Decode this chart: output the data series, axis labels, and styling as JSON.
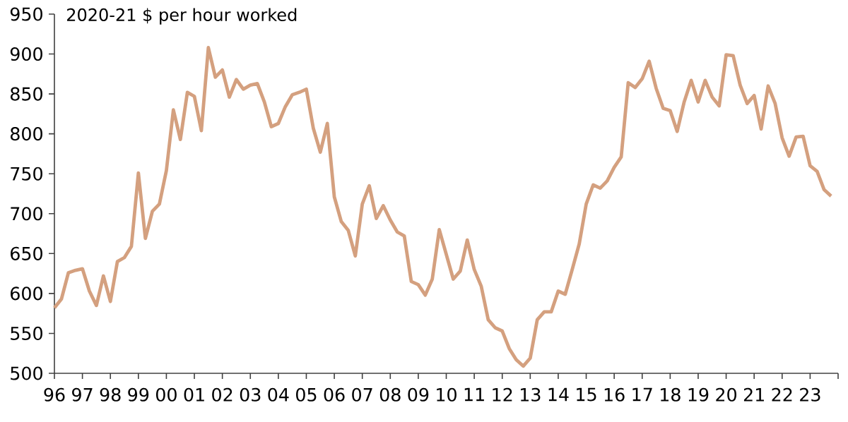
{
  "chart_data": {
    "type": "line",
    "title": "2020-21 $ per hour worked",
    "x": [
      1996.0,
      1996.25,
      1996.5,
      1996.75,
      1997.0,
      1997.25,
      1997.5,
      1997.75,
      1998.0,
      1998.25,
      1998.5,
      1998.75,
      1999.0,
      1999.25,
      1999.5,
      1999.75,
      2000.0,
      2000.25,
      2000.5,
      2000.75,
      2001.0,
      2001.25,
      2001.5,
      2001.75,
      2002.0,
      2002.25,
      2002.5,
      2002.75,
      2003.0,
      2003.25,
      2003.5,
      2003.75,
      2004.0,
      2004.25,
      2004.5,
      2004.75,
      2005.0,
      2005.25,
      2005.5,
      2005.75,
      2006.0,
      2006.25,
      2006.5,
      2006.75,
      2007.0,
      2007.25,
      2007.5,
      2007.75,
      2008.0,
      2008.25,
      2008.5,
      2008.75,
      2009.0,
      2009.25,
      2009.5,
      2009.75,
      2010.0,
      2010.25,
      2010.5,
      2010.75,
      2011.0,
      2011.25,
      2011.5,
      2011.75,
      2012.0,
      2012.25,
      2012.5,
      2012.75,
      2013.0,
      2013.25,
      2013.5,
      2013.75,
      2014.0,
      2014.25,
      2014.5,
      2014.75,
      2015.0,
      2015.25,
      2015.5,
      2015.75,
      2016.0,
      2016.25,
      2016.5,
      2016.75,
      2017.0,
      2017.25,
      2017.5,
      2017.75,
      2018.0,
      2018.25,
      2018.5,
      2018.75,
      2019.0,
      2019.25,
      2019.5,
      2019.75,
      2020.0,
      2020.25,
      2020.5,
      2020.75,
      2021.0,
      2021.25,
      2021.5,
      2021.75,
      2022.0,
      2022.25,
      2022.5,
      2022.75,
      2023.0,
      2023.25,
      2023.5,
      2023.75
    ],
    "series": [
      {
        "color": "#d4a07f",
        "values": [
          582,
          593,
          626,
          629,
          631,
          603,
          585,
          622,
          590,
          640,
          645,
          659,
          751,
          669,
          703,
          712,
          754,
          830,
          793,
          852,
          847,
          804,
          908,
          871,
          880,
          846,
          868,
          856,
          861,
          863,
          840,
          809,
          813,
          834,
          849,
          852,
          856,
          807,
          777,
          813,
          721,
          690,
          679,
          647,
          712,
          735,
          694,
          710,
          692,
          677,
          672,
          615,
          611,
          598,
          618,
          680,
          649,
          618,
          628,
          667,
          630,
          609,
          567,
          557,
          553,
          531,
          517,
          509,
          519,
          567,
          577,
          577,
          603,
          599,
          630,
          662,
          712,
          736,
          732,
          741,
          758,
          771,
          864,
          858,
          869,
          891,
          857,
          832,
          829,
          803,
          840,
          867,
          840,
          867,
          846,
          835,
          899,
          898,
          861,
          838,
          848,
          806,
          860,
          838,
          795,
          772,
          796,
          797,
          760,
          753,
          730,
          722
        ]
      }
    ],
    "xlim": [
      1996,
      2024
    ],
    "ylim": [
      500,
      950
    ],
    "xticks": [
      {
        "value": 1996,
        "label": "96"
      },
      {
        "value": 1997,
        "label": "97"
      },
      {
        "value": 1998,
        "label": "98"
      },
      {
        "value": 1999,
        "label": "99"
      },
      {
        "value": 2000,
        "label": "00"
      },
      {
        "value": 2001,
        "label": "01"
      },
      {
        "value": 2002,
        "label": "02"
      },
      {
        "value": 2003,
        "label": "03"
      },
      {
        "value": 2004,
        "label": "04"
      },
      {
        "value": 2005,
        "label": "05"
      },
      {
        "value": 2006,
        "label": "06"
      },
      {
        "value": 2007,
        "label": "07"
      },
      {
        "value": 2008,
        "label": "08"
      },
      {
        "value": 2009,
        "label": "09"
      },
      {
        "value": 2010,
        "label": "10"
      },
      {
        "value": 2011,
        "label": "11"
      },
      {
        "value": 2012,
        "label": "12"
      },
      {
        "value": 2013,
        "label": "13"
      },
      {
        "value": 2014,
        "label": "14"
      },
      {
        "value": 2015,
        "label": "15"
      },
      {
        "value": 2016,
        "label": "16"
      },
      {
        "value": 2017,
        "label": "17"
      },
      {
        "value": 2018,
        "label": "18"
      },
      {
        "value": 2019,
        "label": "19"
      },
      {
        "value": 2020,
        "label": "20"
      },
      {
        "value": 2021,
        "label": "21"
      },
      {
        "value": 2022,
        "label": "22"
      },
      {
        "value": 2023,
        "label": "23"
      },
      {
        "value": 2024,
        "label": null
      }
    ],
    "yticks": [
      500,
      550,
      600,
      650,
      700,
      750,
      800,
      850,
      900,
      950
    ]
  }
}
